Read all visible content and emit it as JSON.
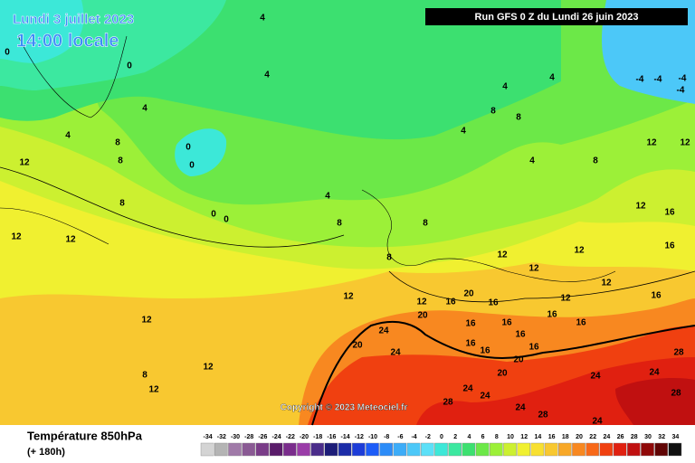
{
  "header": {
    "date": "Lundi 3 juillet 2023",
    "time": "14:00 locale",
    "run": "Run GFS 0 Z du Lundi 26 juin 2023",
    "copyright": "Copyright © 2023 Meteociel.fr"
  },
  "legend": {
    "title": "Température 850hPa",
    "lead": "(+ 180h)",
    "scale": [
      {
        "value": -34,
        "color": "#d4d4d4"
      },
      {
        "value": -32,
        "color": "#b4b4b4"
      },
      {
        "value": -30,
        "color": "#a07aa8"
      },
      {
        "value": -28,
        "color": "#8a5a94"
      },
      {
        "value": -26,
        "color": "#7a3c88"
      },
      {
        "value": -24,
        "color": "#5a1c6a"
      },
      {
        "value": -22,
        "color": "#7a2c8c"
      },
      {
        "value": -20,
        "color": "#9a3ca8"
      },
      {
        "value": -18,
        "color": "#4a2c8a"
      },
      {
        "value": -16,
        "color": "#1c1c78"
      },
      {
        "value": -14,
        "color": "#1c2ca8"
      },
      {
        "value": -12,
        "color": "#1c3cd8"
      },
      {
        "value": -10,
        "color": "#1c5cf8"
      },
      {
        "value": -8,
        "color": "#2c8cf8"
      },
      {
        "value": -6,
        "color": "#3cacf8"
      },
      {
        "value": -4,
        "color": "#4cc8f8"
      },
      {
        "value": -2,
        "color": "#5ce0f8"
      },
      {
        "value": 0,
        "color": "#3ce8d8"
      },
      {
        "value": 2,
        "color": "#3ce8a0"
      },
      {
        "value": 4,
        "color": "#3ce070"
      },
      {
        "value": 6,
        "color": "#6ce848"
      },
      {
        "value": 8,
        "color": "#9cf038"
      },
      {
        "value": 10,
        "color": "#ccf030"
      },
      {
        "value": 12,
        "color": "#f0f030"
      },
      {
        "value": 14,
        "color": "#f8e030"
      },
      {
        "value": 16,
        "color": "#f8c830"
      },
      {
        "value": 18,
        "color": "#f8a828"
      },
      {
        "value": 20,
        "color": "#f88820"
      },
      {
        "value": 22,
        "color": "#f86818"
      },
      {
        "value": 24,
        "color": "#f04010"
      },
      {
        "value": 26,
        "color": "#e02010"
      },
      {
        "value": 28,
        "color": "#c01010"
      },
      {
        "value": 30,
        "color": "#900808"
      },
      {
        "value": 32,
        "color": "#600404"
      },
      {
        "value": 34,
        "color": "#101010"
      }
    ]
  },
  "contour_labels": [
    0,
    0,
    4,
    4,
    8,
    8,
    12,
    0,
    0,
    0,
    0,
    4,
    8,
    12,
    12,
    12,
    12,
    8,
    12,
    12,
    8,
    8,
    8,
    4,
    8,
    4,
    8,
    12,
    12,
    12,
    16,
    16,
    12,
    20,
    20,
    24,
    24,
    20,
    20,
    24,
    24,
    28,
    24,
    28,
    24,
    24,
    28,
    28,
    24,
    12,
    12,
    12,
    12,
    16,
    16,
    16,
    16,
    16,
    16,
    16,
    16,
    16,
    16,
    20,
    12,
    16,
    -4,
    -4,
    -4,
    -4,
    4,
    4,
    8,
    4,
    4
  ]
}
